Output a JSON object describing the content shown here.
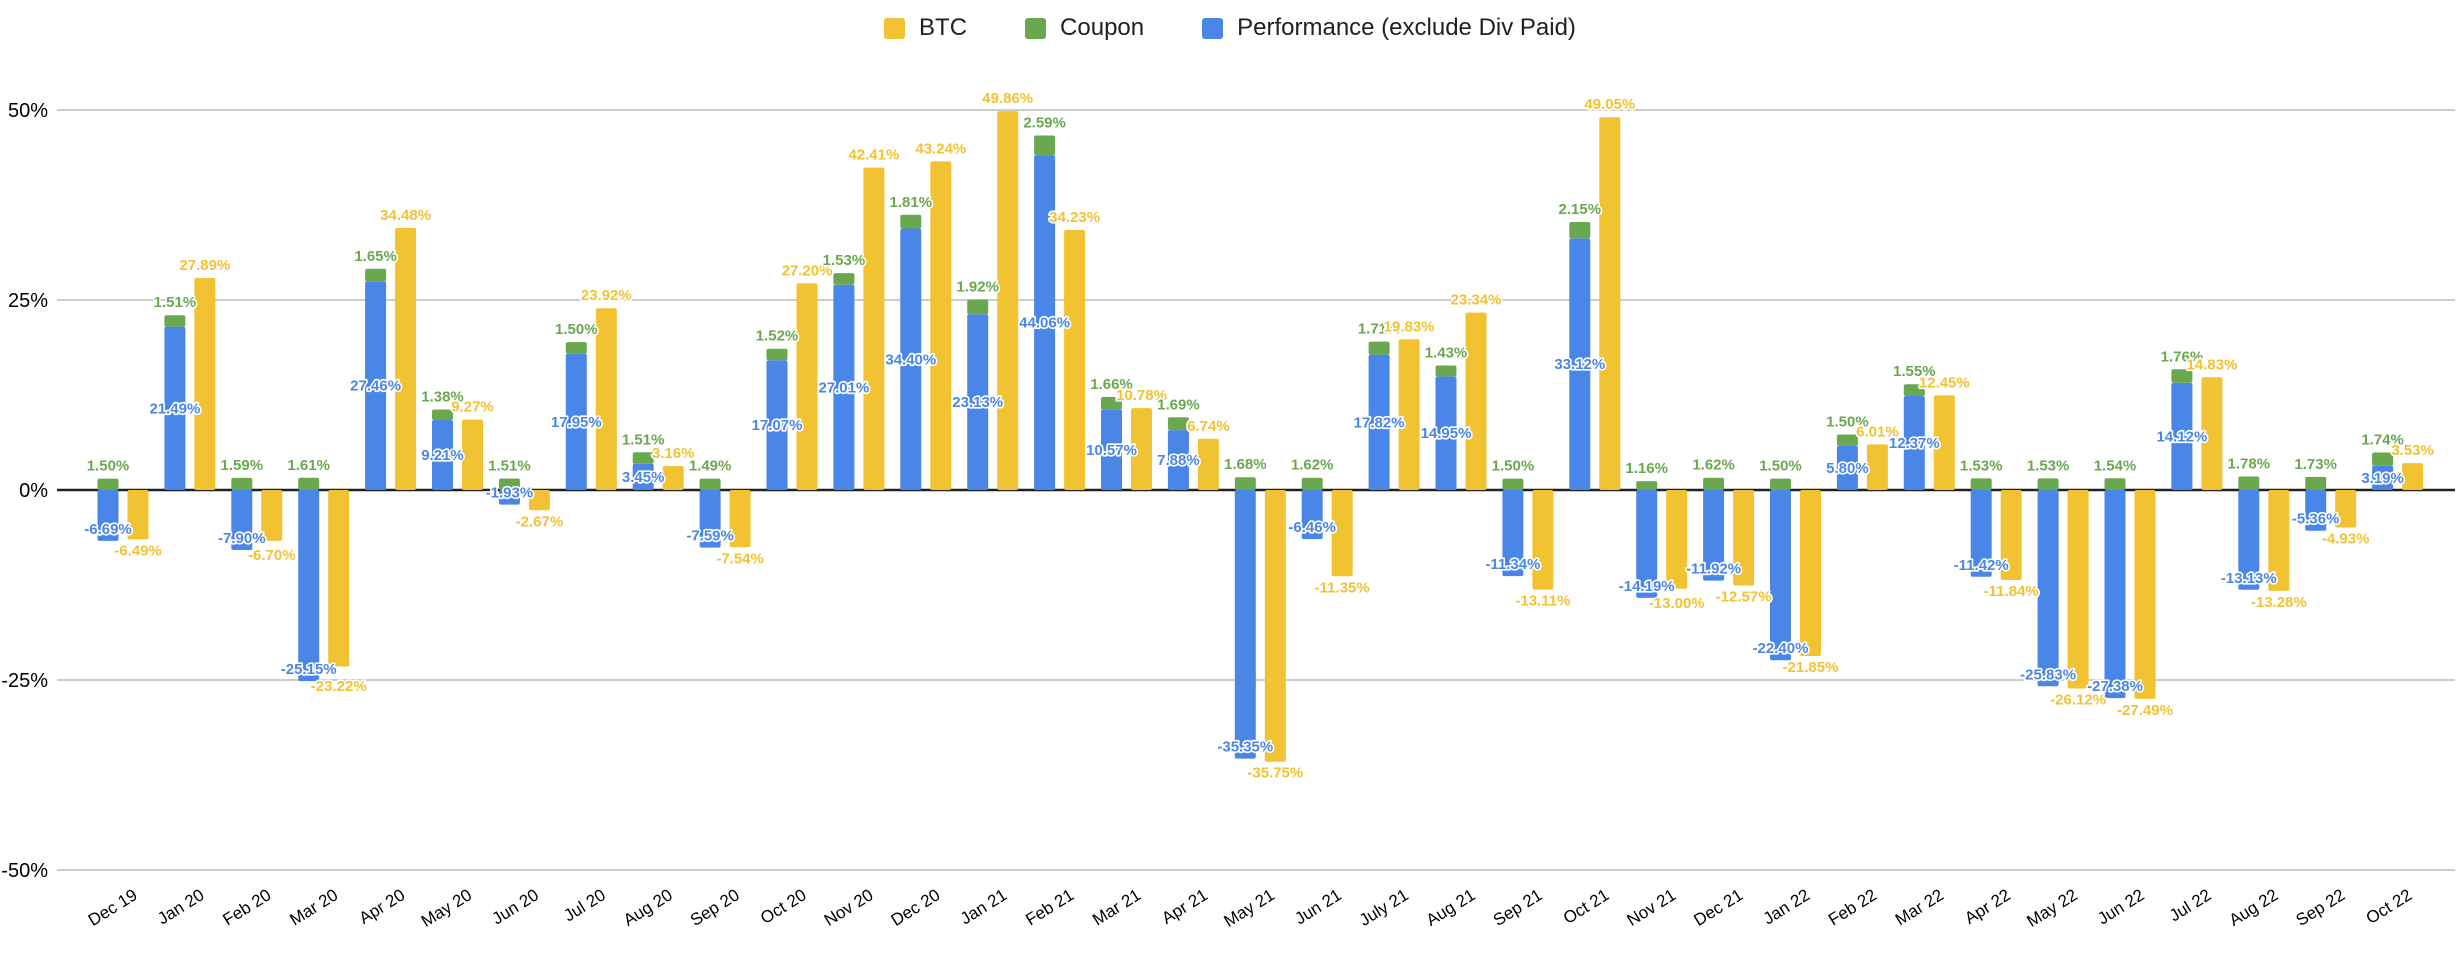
{
  "chart_data": {
    "type": "bar",
    "title": "",
    "xlabel": "",
    "ylabel": "",
    "ylim": [
      -50,
      50
    ],
    "grid": true,
    "legend_position": "top-center",
    "stacking": "Coupon segment is stacked on top of Performance bar; BTC is a separate adjacent bar",
    "annotations": "every bar is labeled with its value to two decimals with % sign",
    "background": "#ffffff",
    "grid_color": "#cccccc",
    "zero_line_color": "#212121",
    "y_ticks": [
      {
        "label": "50%",
        "value": 50
      },
      {
        "label": "25%",
        "value": 25
      },
      {
        "label": "0%",
        "value": 0
      },
      {
        "label": "-25%",
        "value": -25
      },
      {
        "label": "-50%",
        "value": -50
      }
    ],
    "categories": [
      "Dec 19",
      "Jan 20",
      "Feb 20",
      "Mar 20",
      "Apr 20",
      "May 20",
      "Jun 20",
      "Jul 20",
      "Aug 20",
      "Sep 20",
      "Oct 20",
      "Nov 20",
      "Dec 20",
      "Jan 21",
      "Feb 21",
      "Mar 21",
      "Apr 21",
      "May 21",
      "Jun 21",
      "July 21",
      "Aug 21",
      "Sep 21",
      "Oct 21",
      "Nov 21",
      "Dec 21",
      "Jan 22",
      "Feb 22",
      "Mar 22",
      "Apr 22",
      "May 22",
      "Jun 22",
      "Jul 22",
      "Aug 22",
      "Sep 22",
      "Oct 22"
    ],
    "series": [
      {
        "name": "BTC",
        "color": "#F1C232",
        "values": [
          -6.49,
          27.89,
          -6.7,
          -23.22,
          34.48,
          9.27,
          -2.67,
          23.92,
          3.16,
          -7.54,
          27.2,
          42.41,
          43.24,
          49.86,
          34.23,
          10.78,
          6.74,
          -35.75,
          -11.35,
          19.83,
          23.34,
          -13.11,
          49.05,
          -13.0,
          -12.57,
          -21.85,
          6.01,
          12.45,
          -11.84,
          -26.12,
          -27.49,
          14.83,
          -13.28,
          -4.93,
          3.53
        ]
      },
      {
        "name": "Coupon",
        "color": "#6AA84F",
        "values": [
          1.5,
          1.51,
          1.59,
          1.61,
          1.65,
          1.38,
          1.51,
          1.5,
          1.51,
          1.49,
          1.52,
          1.53,
          1.81,
          1.92,
          2.59,
          1.66,
          1.69,
          1.68,
          1.62,
          1.71,
          1.43,
          1.5,
          2.15,
          1.16,
          1.62,
          1.5,
          1.5,
          1.55,
          1.53,
          1.53,
          1.54,
          1.76,
          1.78,
          1.73,
          1.74
        ]
      },
      {
        "name": "Performance (exclude Div Paid)",
        "color": "#4A86E8",
        "values": [
          -6.69,
          21.49,
          -7.9,
          -25.15,
          27.46,
          9.21,
          -1.93,
          17.95,
          3.45,
          -7.59,
          17.07,
          27.01,
          34.4,
          23.13,
          44.06,
          10.57,
          7.88,
          -35.35,
          -6.46,
          17.82,
          14.95,
          -11.34,
          33.12,
          -14.19,
          -11.92,
          -22.4,
          5.8,
          12.37,
          -11.42,
          -25.83,
          -27.38,
          14.12,
          -13.13,
          -5.36,
          3.19
        ]
      }
    ]
  }
}
